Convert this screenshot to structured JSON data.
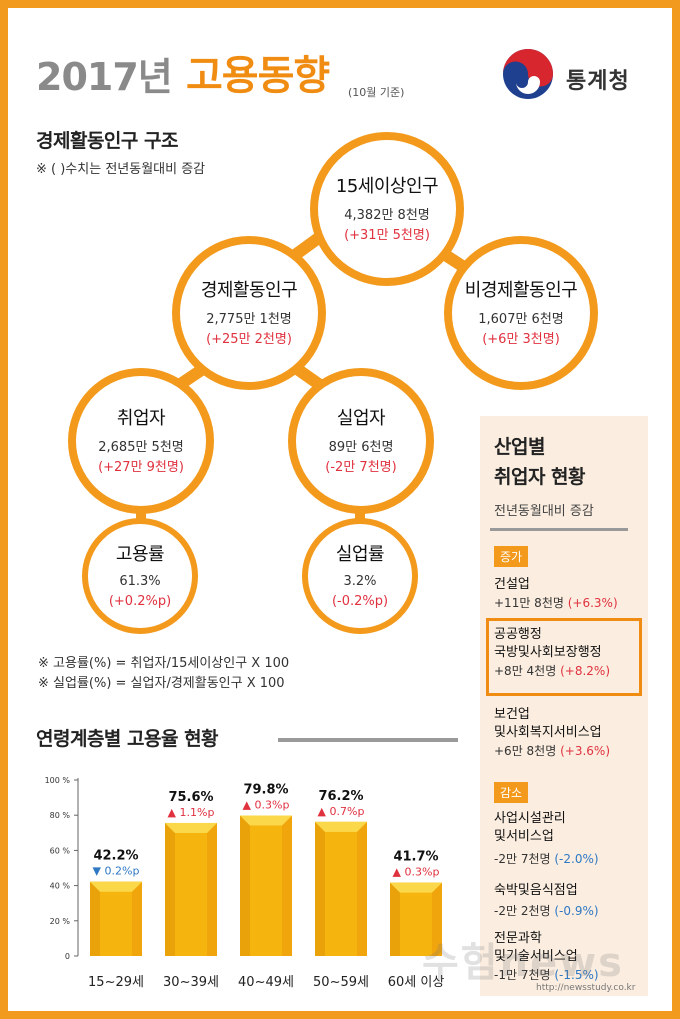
{
  "header": {
    "year": "2017년",
    "title": "고용동향",
    "subtitle": "(10월 기준)",
    "org": "통계청"
  },
  "structure": {
    "title": "경제활동인구 구조",
    "note": "※ ( )수치는 전년동월대비 증감",
    "nodes": {
      "pop15": {
        "name": "15세이상인구",
        "value": "4,382만 8천명",
        "change": "(+31만 5천명)"
      },
      "active": {
        "name": "경제활동인구",
        "value": "2,775만 1천명",
        "change": "(+25만 2천명)"
      },
      "inactive": {
        "name": "비경제활동인구",
        "value": "1,607만 6천명",
        "change": "(+6만 3천명)"
      },
      "employed": {
        "name": "취업자",
        "value": "2,685만 5천명",
        "change": "(+27만 9천명)"
      },
      "unemployed": {
        "name": "실업자",
        "value": "89만 6천명",
        "change": "(-2만 7천명)"
      },
      "emp_rate": {
        "name": "고용률",
        "value": "61.3%",
        "change": "(+0.2%p)"
      },
      "unemp_rate": {
        "name": "실업률",
        "value": "3.2%",
        "change": "(-0.2%p)"
      }
    },
    "formula1": "※ 고용률(%) = 취업자/15세이상인구 X 100",
    "formula2": "※ 실업률(%) = 실업자/경제활동인구 X 100"
  },
  "chart_title": "연령계층별 고용율 현황",
  "chart_data": {
    "type": "bar",
    "categories": [
      "15~29세",
      "30~39세",
      "40~49세",
      "50~59세",
      "60세 이상"
    ],
    "values": [
      42.2,
      75.6,
      79.8,
      76.2,
      41.7
    ],
    "value_labels": [
      "42.2%",
      "75.6%",
      "79.8%",
      "76.2%",
      "41.7%"
    ],
    "changes": [
      "▼ 0.2%p",
      "▲ 1.1%p",
      "▲ 0.3%p",
      "▲ 0.7%p",
      "▲ 0.3%p"
    ],
    "change_dir": [
      "down",
      "up",
      "up",
      "up",
      "up"
    ],
    "yticks": [
      "100 %",
      "80 %",
      "60 %",
      "40 %",
      "20 %",
      "0"
    ],
    "ylim": [
      0,
      100
    ],
    "bar_color": "#f6b50e"
  },
  "industry": {
    "title1": "산업별",
    "title2": "취업자 현황",
    "subtitle": "전년동월대비 증감",
    "increase_label": "증가",
    "decrease_label": "감소",
    "increase": [
      {
        "name1": "건설업",
        "name2": "",
        "value": "+11만 8천명",
        "pct": "(+6.3%)"
      },
      {
        "name1": "공공행정",
        "name2": "국방및사회보장행정",
        "value": "+8만 4천명",
        "pct": "(+8.2%)"
      },
      {
        "name1": "보건업",
        "name2": "및사회복지서비스업",
        "value": "+6만 8천명",
        "pct": "(+3.6%)"
      }
    ],
    "decrease": [
      {
        "name1": "사업시설관리",
        "name2": "및서비스업",
        "value": "-2만 7천명",
        "pct": "(-2.0%)"
      },
      {
        "name1": "숙박및음식점업",
        "name2": "",
        "value": "-2만 2천명",
        "pct": "(-0.9%)"
      },
      {
        "name1": "전문과학",
        "name2": "및기술서비스업",
        "value": "-1만 7천명",
        "pct": "(-1.5%)"
      }
    ]
  },
  "watermark": {
    "text": "수험news",
    "url": "http://newsstudy.co.kr"
  },
  "colors": {
    "orange": "#f39a1c",
    "red": "#e0313f",
    "blue": "#2f78c4"
  }
}
